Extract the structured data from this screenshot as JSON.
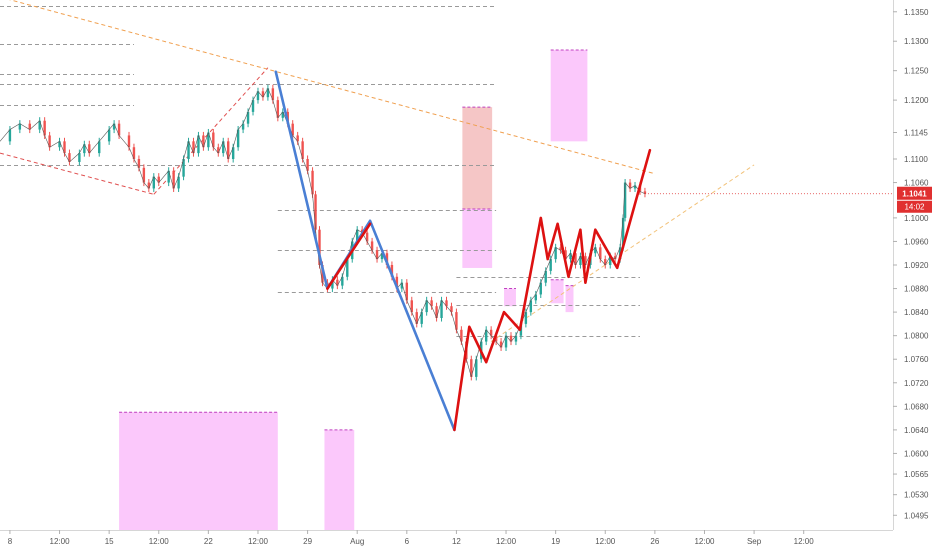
{
  "chart_data": {
    "type": "line",
    "title": "",
    "xlabel": "",
    "ylabel": "",
    "y_axis_side": "right",
    "y_ticks": [
      "1.0495",
      "1.0530",
      "1.0565",
      "1.0600",
      "1.0640",
      "1.0680",
      "1.0720",
      "1.0760",
      "1.0800",
      "1.0840",
      "1.0880",
      "1.0920",
      "1.0960",
      "1.1000",
      "1.1060",
      "1.1100",
      "1.1145",
      "1.1200",
      "1.1250",
      "1.1300",
      "1.1350"
    ],
    "ylim": [
      1.047,
      1.137
    ],
    "x_ticks": [
      {
        "label": "8",
        "x": 0
      },
      {
        "label": "12:00",
        "x": 0.5
      },
      {
        "label": "15",
        "x": 1
      },
      {
        "label": "12:00",
        "x": 1.5
      },
      {
        "label": "22",
        "x": 2
      },
      {
        "label": "12:00",
        "x": 2.5
      },
      {
        "label": "29",
        "x": 3
      },
      {
        "label": "Aug",
        "x": 3.5
      },
      {
        "label": "6",
        "x": 4
      },
      {
        "label": "12",
        "x": 4.5
      },
      {
        "label": "12:00",
        "x": 5
      },
      {
        "label": "19",
        "x": 5.5
      },
      {
        "label": "12:00",
        "x": 6
      },
      {
        "label": "26",
        "x": 6.5
      },
      {
        "label": "12:00",
        "x": 7
      },
      {
        "label": "Sep",
        "x": 7.5
      },
      {
        "label": "12:00",
        "x": 8
      }
    ],
    "xlim": [
      -0.1,
      8.9
    ],
    "price_series": [
      [
        -0.1,
        1.113
      ],
      [
        0.0,
        1.115
      ],
      [
        0.1,
        1.116
      ],
      [
        0.2,
        1.115
      ],
      [
        0.3,
        1.1165
      ],
      [
        0.35,
        1.114
      ],
      [
        0.4,
        1.112
      ],
      [
        0.5,
        1.113
      ],
      [
        0.55,
        1.111
      ],
      [
        0.6,
        1.1095
      ],
      [
        0.7,
        1.111
      ],
      [
        0.75,
        1.1125
      ],
      [
        0.8,
        1.111
      ],
      [
        0.9,
        1.113
      ],
      [
        1.0,
        1.115
      ],
      [
        1.05,
        1.116
      ],
      [
        1.1,
        1.114
      ],
      [
        1.2,
        1.112
      ],
      [
        1.25,
        1.11
      ],
      [
        1.3,
        1.1085
      ],
      [
        1.35,
        1.106
      ],
      [
        1.4,
        1.105
      ],
      [
        1.45,
        1.107
      ],
      [
        1.5,
        1.106
      ],
      [
        1.6,
        1.108
      ],
      [
        1.65,
        1.105
      ],
      [
        1.7,
        1.107
      ],
      [
        1.75,
        1.11
      ],
      [
        1.8,
        1.113
      ],
      [
        1.85,
        1.111
      ],
      [
        1.9,
        1.114
      ],
      [
        1.95,
        1.112
      ],
      [
        2.0,
        1.1145
      ],
      [
        2.05,
        1.112
      ],
      [
        2.1,
        1.111
      ],
      [
        2.15,
        1.113
      ],
      [
        2.2,
        1.11
      ],
      [
        2.25,
        1.112
      ],
      [
        2.3,
        1.115
      ],
      [
        2.35,
        1.116
      ],
      [
        2.4,
        1.118
      ],
      [
        2.45,
        1.12
      ],
      [
        2.5,
        1.1215
      ],
      [
        2.55,
        1.1205
      ],
      [
        2.6,
        1.122
      ],
      [
        2.65,
        1.12
      ],
      [
        2.7,
        1.117
      ],
      [
        2.75,
        1.118
      ],
      [
        2.8,
        1.116
      ],
      [
        2.85,
        1.114
      ],
      [
        2.9,
        1.113
      ],
      [
        2.95,
        1.11
      ],
      [
        3.0,
        1.108
      ],
      [
        3.05,
        1.104
      ],
      [
        3.08,
        1.098
      ],
      [
        3.12,
        1.092
      ],
      [
        3.15,
        1.089
      ],
      [
        3.2,
        1.088
      ],
      [
        3.25,
        1.0895
      ],
      [
        3.3,
        1.0885
      ],
      [
        3.35,
        1.09
      ],
      [
        3.4,
        1.093
      ],
      [
        3.45,
        1.096
      ],
      [
        3.5,
        1.098
      ],
      [
        3.55,
        1.0975
      ],
      [
        3.6,
        1.096
      ],
      [
        3.65,
        1.0945
      ],
      [
        3.7,
        1.093
      ],
      [
        3.75,
        1.094
      ],
      [
        3.8,
        1.092
      ],
      [
        3.85,
        1.09
      ],
      [
        3.9,
        1.088
      ],
      [
        3.95,
        1.089
      ],
      [
        4.0,
        1.086
      ],
      [
        4.05,
        1.084
      ],
      [
        4.1,
        1.082
      ],
      [
        4.15,
        1.084
      ],
      [
        4.2,
        1.086
      ],
      [
        4.25,
        1.085
      ],
      [
        4.3,
        1.083
      ],
      [
        4.35,
        1.086
      ],
      [
        4.4,
        1.085
      ],
      [
        4.45,
        1.084
      ],
      [
        4.5,
        1.081
      ],
      [
        4.55,
        1.079
      ],
      [
        4.6,
        1.076
      ],
      [
        4.65,
        1.073
      ],
      [
        4.7,
        1.076
      ],
      [
        4.75,
        1.079
      ],
      [
        4.8,
        1.081
      ],
      [
        4.85,
        1.08
      ],
      [
        4.9,
        1.079
      ],
      [
        4.95,
        1.078
      ],
      [
        5.0,
        1.08
      ],
      [
        5.05,
        1.079
      ],
      [
        5.1,
        1.08
      ],
      [
        5.15,
        1.082
      ],
      [
        5.2,
        1.084
      ],
      [
        5.25,
        1.086
      ],
      [
        5.3,
        1.087
      ],
      [
        5.35,
        1.089
      ],
      [
        5.4,
        1.091
      ],
      [
        5.45,
        1.093
      ],
      [
        5.5,
        1.095
      ],
      [
        5.55,
        1.0945
      ],
      [
        5.6,
        1.093
      ],
      [
        5.65,
        1.094
      ],
      [
        5.7,
        1.092
      ],
      [
        5.75,
        1.0935
      ],
      [
        5.8,
        1.092
      ],
      [
        5.85,
        1.094
      ],
      [
        5.9,
        1.095
      ],
      [
        5.95,
        1.093
      ],
      [
        6.0,
        1.092
      ],
      [
        6.05,
        1.0935
      ],
      [
        6.1,
        1.093
      ],
      [
        6.15,
        1.095
      ],
      [
        6.18,
        1.1
      ],
      [
        6.2,
        1.106
      ],
      [
        6.25,
        1.105
      ],
      [
        6.3,
        1.1055
      ],
      [
        6.35,
        1.1045
      ],
      [
        6.4,
        1.1041
      ]
    ],
    "series": [
      {
        "color": "#4a7fd4",
        "points": [
          [
            2.68,
            1.1248
          ],
          [
            3.2,
            1.088
          ],
          [
            3.63,
            1.0995
          ],
          [
            4.48,
            1.064
          ]
        ]
      },
      {
        "color": "#dd1111",
        "points": [
          [
            3.2,
            1.088
          ],
          [
            3.63,
            1.099
          ]
        ]
      },
      {
        "color": "#dd1111",
        "points": [
          [
            4.48,
            1.064
          ],
          [
            4.63,
            1.0815
          ],
          [
            4.8,
            1.0755
          ],
          [
            4.98,
            1.084
          ],
          [
            5.14,
            1.081
          ],
          [
            5.35,
            1.1
          ],
          [
            5.42,
            1.093
          ],
          [
            5.52,
            1.099
          ],
          [
            5.63,
            1.09
          ],
          [
            5.75,
            1.098
          ],
          [
            5.8,
            1.089
          ],
          [
            5.9,
            1.098
          ],
          [
            6.12,
            1.0915
          ],
          [
            6.45,
            1.1115
          ]
        ]
      }
    ],
    "dashed_lines": [
      {
        "color": "#f0a050",
        "from": [
          -0.1,
          1.1375
        ],
        "to": [
          6.5,
          1.1075
        ]
      },
      {
        "color": "#f2c27a",
        "from": [
          4.85,
          1.079
        ],
        "to": [
          7.5,
          1.109
        ]
      },
      {
        "color": "#e05050",
        "from": [
          -0.1,
          1.111
        ],
        "to": [
          1.45,
          1.104
        ]
      },
      {
        "color": "#e05050",
        "from": [
          1.45,
          1.104
        ],
        "to": [
          2.6,
          1.1255
        ]
      }
    ],
    "levels": [
      {
        "y": 1.136,
        "x0": -0.1,
        "x1": 4.9
      },
      {
        "y": 1.1295,
        "x0": -0.1,
        "x1": 1.25
      },
      {
        "y": 1.1245,
        "x0": -0.1,
        "x1": 1.25
      },
      {
        "y": 1.1228,
        "x0": -0.1,
        "x1": 4.9
      },
      {
        "y": 1.1192,
        "x0": -0.1,
        "x1": 1.25
      },
      {
        "y": 1.109,
        "x0": -0.1,
        "x1": 4.9
      },
      {
        "y": 1.1013,
        "x0": 2.7,
        "x1": 4.9
      },
      {
        "y": 1.0945,
        "x0": 2.7,
        "x1": 4.9
      },
      {
        "y": 1.0875,
        "x0": 2.7,
        "x1": 4.9
      },
      {
        "y": 1.09,
        "x0": 4.5,
        "x1": 6.35
      },
      {
        "y": 1.0852,
        "x0": 4.5,
        "x1": 6.35
      },
      {
        "y": 1.08,
        "x0": 4.5,
        "x1": 6.35
      }
    ],
    "zones": [
      {
        "x0": 4.56,
        "x1": 4.86,
        "y0": 1.1015,
        "y1": 1.1188,
        "color": "#f5c6c6"
      },
      {
        "x0": 4.56,
        "x1": 4.86,
        "y0": 1.0915,
        "y1": 1.1015,
        "color": "#fbc8fb"
      },
      {
        "x0": 5.45,
        "x1": 5.82,
        "y0": 1.113,
        "y1": 1.1285,
        "color": "#fbc8fb"
      },
      {
        "x0": 1.1,
        "x1": 2.7,
        "y0": 1.047,
        "y1": 1.067,
        "color": "#fbc8fb"
      },
      {
        "x0": 3.17,
        "x1": 3.47,
        "y0": 1.047,
        "y1": 1.064,
        "color": "#fbc8fb"
      },
      {
        "x0": 4.98,
        "x1": 5.1,
        "y0": 1.085,
        "y1": 1.088,
        "color": "#fbc8fb"
      },
      {
        "x0": 5.45,
        "x1": 5.58,
        "y0": 1.0855,
        "y1": 1.0895,
        "color": "#fbc8fb"
      },
      {
        "x0": 5.6,
        "x1": 5.68,
        "y0": 1.084,
        "y1": 1.0885,
        "color": "#fbc8fb"
      }
    ],
    "last_price": {
      "label": "1.1041",
      "value": 1.1041,
      "color": "#e03030"
    },
    "countdown": {
      "label": "14:02",
      "color": "#e03030"
    }
  }
}
